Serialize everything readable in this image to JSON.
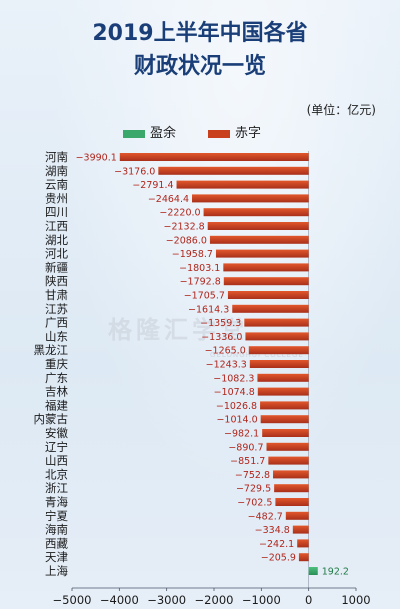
{
  "chart_data": {
    "type": "bar",
    "orientation": "horizontal",
    "title": [
      "2019上半年中国各省",
      "财政状况一览"
    ],
    "unit_label": "(单位：亿元)",
    "legend": [
      {
        "label": "盈余",
        "color": "#3aa86b"
      },
      {
        "label": "赤字",
        "color": "#c8401c"
      }
    ],
    "categories": [
      "河南",
      "湖南",
      "云南",
      "贵州",
      "四川",
      "江西",
      "湖北",
      "河北",
      "新疆",
      "陕西",
      "甘肃",
      "江苏",
      "广西",
      "山东",
      "黑龙江",
      "重庆",
      "广东",
      "吉林",
      "福建",
      "内蒙古",
      "安徽",
      "辽宁",
      "山西",
      "北京",
      "浙江",
      "青海",
      "宁夏",
      "海南",
      "西藏",
      "天津",
      "上海"
    ],
    "values": [
      -3990.1,
      -3176.0,
      -2791.4,
      -2464.4,
      -2220.0,
      -2132.8,
      -2086.0,
      -1958.7,
      -1803.1,
      -1792.8,
      -1705.7,
      -1614.3,
      -1359.3,
      -1336.0,
      -1265.0,
      -1243.3,
      -1082.3,
      -1074.8,
      -1026.8,
      -1014.0,
      -982.1,
      -890.7,
      -851.7,
      -752.8,
      -729.5,
      -702.5,
      -482.7,
      -334.8,
      -242.1,
      -205.9,
      192.2
    ],
    "value_labels": [
      "−3990.1",
      "−3176.0",
      "−2791.4",
      "−2464.4",
      "−2220.0",
      "−2132.8",
      "−2086.0",
      "−1958.7",
      "−1803.1",
      "−1792.8",
      "−1705.7",
      "−1614.3",
      "−1359.3",
      "−1336.0",
      "−1265.0",
      "−1243.3",
      "−1082.3",
      "−1074.8",
      "−1026.8",
      "−1014.0",
      "−982.1",
      "−890.7",
      "−851.7",
      "−752.8",
      "−729.5",
      "−702.5",
      "−482.7",
      "−334.8",
      "−242.1",
      "−205.9",
      "192.2"
    ],
    "xlim": [
      -5000,
      1000
    ],
    "xticks": [
      -5000,
      -4000,
      -3000,
      -2000,
      -1000,
      0,
      1000
    ],
    "xtick_labels": [
      "−5000",
      "−4000",
      "−3000",
      "−2000",
      "−1000",
      "0",
      "1000"
    ]
  },
  "watermark": {
    "text": "格隆汇学堂",
    "sub": "GELONGHUI COLLEGE"
  },
  "colors": {
    "deficit": "#c8401c",
    "surplus": "#3aa86b",
    "title": "#1a3e78",
    "value_label": "#b0261c"
  }
}
